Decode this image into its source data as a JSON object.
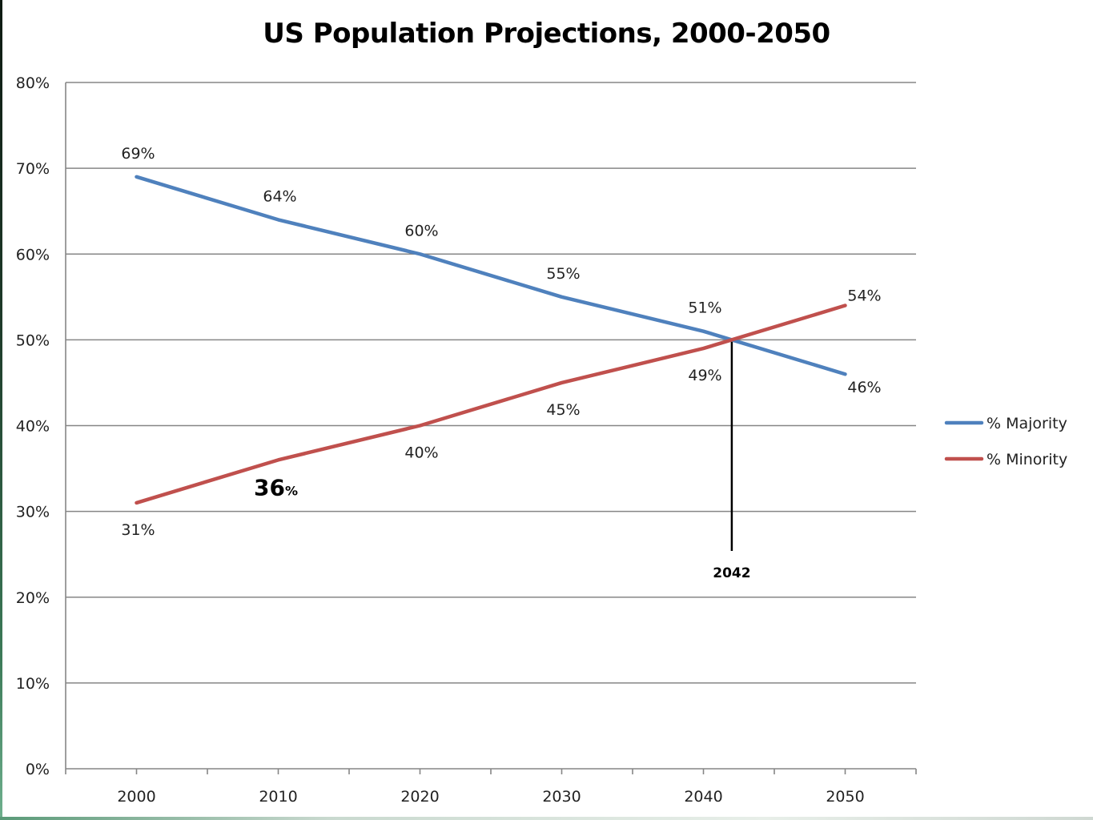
{
  "chart_data": {
    "type": "line",
    "title": "US Population Projections, 2000-2050",
    "xlabel": "",
    "ylabel": "",
    "x": [
      "2000",
      "2010",
      "2020",
      "2030",
      "2040",
      "2050"
    ],
    "ylim": [
      0,
      80
    ],
    "y_ticks": [
      "0%",
      "10%",
      "20%",
      "30%",
      "40%",
      "50%",
      "60%",
      "70%",
      "80%"
    ],
    "grid": true,
    "legend_position": "right",
    "series": [
      {
        "name": "% Majority",
        "color": "#4F81BD",
        "values": [
          69,
          64,
          60,
          55,
          51,
          46
        ],
        "labels": [
          "69%",
          "64%",
          "60%",
          "55%",
          "51%",
          "46%"
        ]
      },
      {
        "name": "% Minority",
        "color": "#C0504D",
        "values": [
          31,
          36,
          40,
          45,
          49,
          54
        ],
        "labels": [
          "31%",
          "36",
          "40%",
          "45%",
          "49%",
          "54%"
        ]
      }
    ],
    "emphasized_label": {
      "series": 1,
      "index": 1,
      "number": "36",
      "suffix": "%"
    },
    "annotation": {
      "text": "2042",
      "x_year": 2042,
      "y_value": 50
    }
  }
}
